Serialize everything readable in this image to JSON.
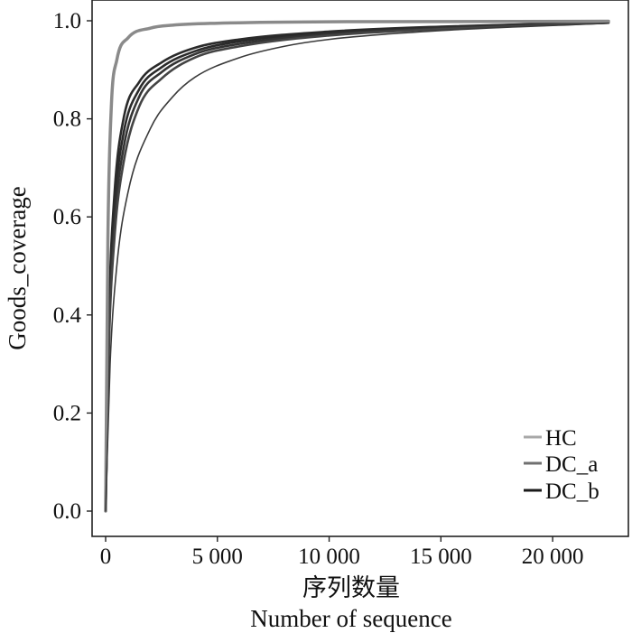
{
  "chart_data": {
    "type": "line",
    "title": "",
    "xlabel_cn": "序列数量",
    "xlabel": "Number of sequence",
    "ylabel": "Goods_coverage",
    "xlim": [
      0,
      22500
    ],
    "ylim": [
      0,
      1.0
    ],
    "x_ticks": [
      0,
      5000,
      10000,
      15000,
      20000
    ],
    "x_tick_labels": [
      "0",
      "5 000",
      "10 000",
      "15 000",
      "20 000"
    ],
    "y_ticks": [
      0.0,
      0.2,
      0.4,
      0.6,
      0.8,
      1.0
    ],
    "y_tick_labels": [
      "0.0",
      "0.2",
      "0.4",
      "0.6",
      "0.8",
      "1.0"
    ],
    "grid": false,
    "legend_position": "bottom-right",
    "legend": [
      {
        "name": "HC",
        "color": "#a8a8a8"
      },
      {
        "name": "DC_a",
        "color": "#707070"
      },
      {
        "name": "DC_b",
        "color": "#1a1a1a"
      }
    ],
    "series": [
      {
        "group": "DC_a",
        "color": "#8a8a8a",
        "width": 3.5,
        "x": [
          0,
          100,
          250,
          500,
          1000,
          2000,
          3000,
          5000,
          10000,
          22500
        ],
        "y": [
          0.0,
          0.55,
          0.82,
          0.92,
          0.965,
          0.985,
          0.991,
          0.995,
          0.998,
          0.999
        ]
      },
      {
        "group": "DC_b",
        "color": "#2a2a2a",
        "width": 2.6,
        "x": [
          0,
          150,
          400,
          800,
          1500,
          2500,
          4000,
          6000,
          10000,
          15000,
          22500
        ],
        "y": [
          0.0,
          0.4,
          0.65,
          0.8,
          0.875,
          0.915,
          0.945,
          0.962,
          0.978,
          0.988,
          0.997
        ]
      },
      {
        "group": "DC_b",
        "color": "#2a2a2a",
        "width": 2.6,
        "x": [
          0,
          150,
          400,
          800,
          1500,
          2500,
          4000,
          6000,
          10000,
          15000,
          22500
        ],
        "y": [
          0.0,
          0.38,
          0.62,
          0.77,
          0.86,
          0.905,
          0.938,
          0.958,
          0.976,
          0.987,
          0.997
        ]
      },
      {
        "group": "DC_b",
        "color": "#333333",
        "width": 2.6,
        "x": [
          0,
          150,
          400,
          800,
          1500,
          2500,
          4000,
          6000,
          10000,
          15000,
          22500
        ],
        "y": [
          0.0,
          0.36,
          0.59,
          0.74,
          0.845,
          0.895,
          0.932,
          0.953,
          0.973,
          0.985,
          0.996
        ]
      },
      {
        "group": "DC_b",
        "color": "#444444",
        "width": 2.6,
        "x": [
          0,
          150,
          400,
          800,
          1500,
          2500,
          4000,
          6000,
          10000,
          15000,
          22500
        ],
        "y": [
          0.0,
          0.34,
          0.56,
          0.71,
          0.825,
          0.882,
          0.925,
          0.948,
          0.97,
          0.983,
          0.996
        ]
      },
      {
        "group": "HC",
        "color": "#3a3a3a",
        "width": 1.6,
        "x": [
          0,
          200,
          500,
          1000,
          2000,
          3000,
          4000,
          6000,
          8000,
          10000,
          15000,
          22500
        ],
        "y": [
          0.0,
          0.3,
          0.5,
          0.65,
          0.78,
          0.845,
          0.885,
          0.925,
          0.948,
          0.962,
          0.98,
          0.995
        ]
      }
    ]
  }
}
